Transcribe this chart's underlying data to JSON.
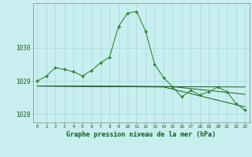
{
  "title": "Graphe pression niveau de la mer (hPa)",
  "background_color": "#c8eef0",
  "grid_color": "#a8d8dc",
  "line_color_dark": "#1a5c1a",
  "line_color_mid": "#2d8b2d",
  "xlim": [
    -0.5,
    23.5
  ],
  "ylim": [
    1027.75,
    1031.35
  ],
  "yticks": [
    1028,
    1029,
    1030
  ],
  "xticks": [
    0,
    1,
    2,
    3,
    4,
    5,
    6,
    7,
    8,
    9,
    10,
    11,
    12,
    13,
    14,
    15,
    16,
    17,
    18,
    19,
    20,
    21,
    22,
    23
  ],
  "series1_x": [
    0,
    1,
    2,
    3,
    4,
    5,
    6,
    7,
    8,
    9,
    10,
    11,
    12,
    13,
    14,
    15,
    16,
    17,
    18,
    19,
    20,
    21,
    22,
    23
  ],
  "series1_y": [
    1029.0,
    1029.15,
    1029.4,
    1029.35,
    1029.28,
    1029.15,
    1029.32,
    1029.55,
    1029.72,
    1030.65,
    1031.05,
    1031.1,
    1030.5,
    1029.5,
    1029.1,
    1028.82,
    1028.52,
    1028.72,
    1028.58,
    1028.68,
    1028.82,
    1028.68,
    1028.32,
    1028.12
  ],
  "series2_x": [
    0,
    23
  ],
  "series2_y": [
    1028.85,
    1028.82
  ],
  "series3_x": [
    0,
    15,
    23
  ],
  "series3_y": [
    1028.85,
    1028.83,
    1028.6
  ],
  "series4_x": [
    0,
    14,
    23
  ],
  "series4_y": [
    1028.85,
    1028.82,
    1028.22
  ]
}
